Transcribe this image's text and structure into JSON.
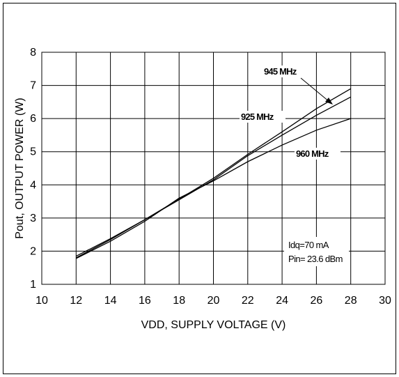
{
  "chart_data": {
    "type": "line",
    "title": "",
    "xlabel": "VDD, SUPPLY VOLTAGE (V)",
    "ylabel": "Pout, OUTPUT POWER (W)",
    "xlim": [
      10,
      30
    ],
    "ylim": [
      1,
      8
    ],
    "xticks": [
      10,
      12,
      14,
      16,
      18,
      20,
      22,
      24,
      26,
      28,
      30
    ],
    "yticks": [
      1,
      2,
      3,
      4,
      5,
      6,
      7,
      8
    ],
    "grid": true,
    "series": [
      {
        "name": "925 MHz",
        "x": [
          12,
          14,
          16,
          18,
          20,
          22,
          24,
          26,
          28
        ],
        "y": [
          1.85,
          2.38,
          2.95,
          3.55,
          4.15,
          4.88,
          5.5,
          6.1,
          6.65
        ]
      },
      {
        "name": "945 MHz",
        "x": [
          12,
          14,
          16,
          18,
          20,
          22,
          24,
          26,
          28
        ],
        "y": [
          1.8,
          2.35,
          2.95,
          3.57,
          4.2,
          4.92,
          5.6,
          6.3,
          6.9
        ]
      },
      {
        "name": "960 MHz",
        "x": [
          12,
          14,
          16,
          18,
          20,
          22,
          24,
          26,
          28
        ],
        "y": [
          1.78,
          2.3,
          2.9,
          3.6,
          4.12,
          4.7,
          5.2,
          5.65,
          6.0
        ]
      }
    ],
    "annotations": {
      "label_945": "945 MHz",
      "label_925": "925 MHz",
      "label_960": "960 MHz",
      "idq": "Idq=70 mA",
      "pin": "Pin= 23.6 dBm"
    }
  }
}
